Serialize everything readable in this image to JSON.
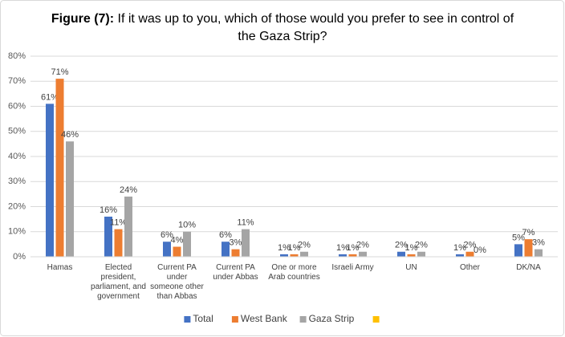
{
  "chart_data": {
    "type": "bar",
    "title": [
      "Figure (7):",
      "If it was up to you, which of those would you prefer to see in control of",
      "the Gaza Strip?"
    ],
    "categories": [
      "Hamas",
      "Elected president, parliament, and government",
      "Current PA under someone other than Abbas",
      "Current PA under Abbas",
      "One or more Arab countries",
      "Israeli Army",
      "UN",
      "Other",
      "DK/NA"
    ],
    "series": [
      {
        "name": "Total",
        "color": "#4472c4",
        "values": [
          61,
          16,
          6,
          6,
          1,
          1,
          2,
          1,
          5
        ],
        "value_labels": [
          "61%",
          "16%",
          "6%",
          "6%",
          "1%",
          "1%",
          "2%",
          "1%",
          "5%"
        ]
      },
      {
        "name": "West Bank",
        "color": "#ed7d31",
        "values": [
          71,
          11,
          4,
          3,
          1,
          1,
          1,
          2,
          7
        ],
        "value_labels": [
          "71%",
          "11%",
          "4%",
          "3%",
          "1%",
          "1%",
          "1%",
          "2%",
          "7%"
        ]
      },
      {
        "name": "Gaza Strip",
        "color": "#a5a5a5",
        "values": [
          46,
          24,
          10,
          11,
          2,
          2,
          2,
          0,
          3
        ],
        "value_labels": [
          "46%",
          "24%",
          "10%",
          "11%",
          "2%",
          "2%",
          "2%",
          "0%",
          "3%"
        ]
      },
      {
        "name": null,
        "color": "#ffc000",
        "values": [
          null,
          null,
          null,
          null,
          null,
          null,
          null,
          null,
          null
        ]
      }
    ],
    "ylim": [
      0,
      80
    ],
    "yticks": [
      {
        "value": 0,
        "label": "0%"
      },
      {
        "value": 10,
        "label": "10%"
      },
      {
        "value": 20,
        "label": "20%"
      },
      {
        "value": 30,
        "label": "30%"
      },
      {
        "value": 40,
        "label": "40%"
      },
      {
        "value": 50,
        "label": "50%"
      },
      {
        "value": 60,
        "label": "60%"
      },
      {
        "value": 70,
        "label": "70%"
      },
      {
        "value": 80,
        "label": "80%"
      }
    ],
    "grid": true,
    "legend": "bottom"
  }
}
